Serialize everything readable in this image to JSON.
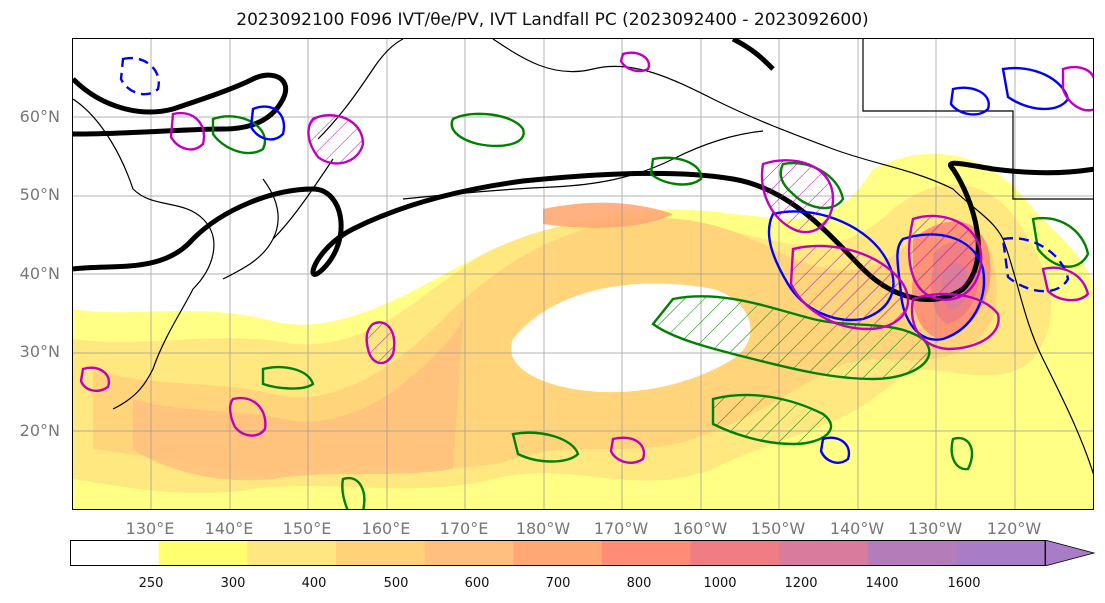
{
  "title": "2023092100 F096 IVT/θe/PV, IVT Landfall PC (2023092400 - 2023092600)",
  "map": {
    "lat_labels": [
      "60°N",
      "50°N",
      "40°N",
      "30°N",
      "20°N"
    ],
    "lon_labels": [
      "130°E",
      "140°E",
      "150°E",
      "160°E",
      "170°E",
      "180°W",
      "170°W",
      "160°W",
      "150°W",
      "140°W",
      "130°W",
      "120°W"
    ],
    "legend_fill_colors": [
      "#ffffff",
      "#ffff70",
      "#ffe680",
      "#ffd27a",
      "#ffbf7f",
      "#ffa873",
      "#ff8c74",
      "#f07d84",
      "#d97b9c",
      "#b47cba",
      "#a87cc6"
    ],
    "contour_colors": {
      "theta_e": "#008000",
      "pv": "#0000ff",
      "ivt_pc": "#c000c0",
      "jet": "#000000"
    }
  },
  "colorbar": {
    "tick_labels": [
      "250",
      "300",
      "400",
      "500",
      "600",
      "700",
      "800",
      "1000",
      "1200",
      "1400",
      "1600"
    ]
  }
}
